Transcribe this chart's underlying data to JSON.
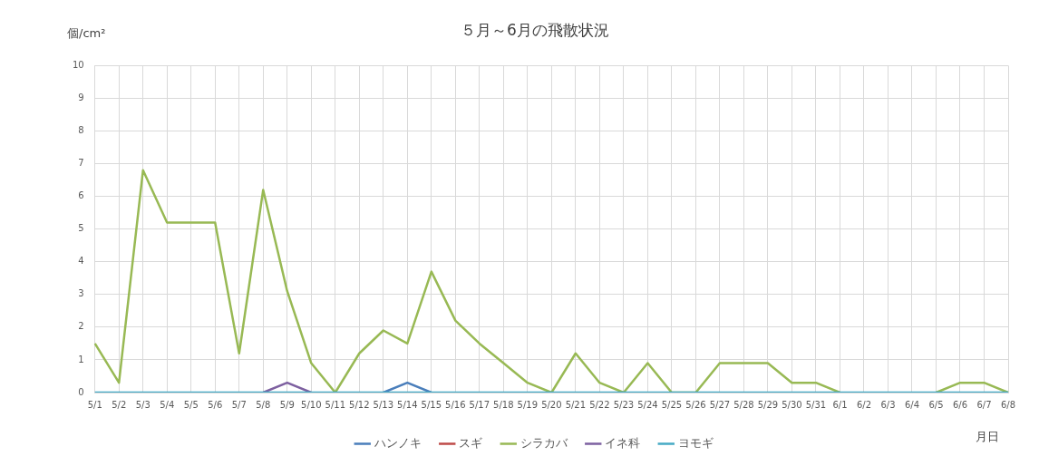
{
  "chart_data": {
    "type": "line",
    "title": "５月～6月の飛散状況",
    "ylabel": "個/cm²",
    "xlabel": "月日",
    "categories": [
      "5/1",
      "5/2",
      "5/3",
      "5/4",
      "5/5",
      "5/6",
      "5/7",
      "5/8",
      "5/9",
      "5/10",
      "5/11",
      "5/12",
      "5/13",
      "5/14",
      "5/15",
      "5/16",
      "5/17",
      "5/18",
      "5/19",
      "5/20",
      "5/21",
      "5/22",
      "5/23",
      "5/24",
      "5/25",
      "5/26",
      "5/27",
      "5/28",
      "5/29",
      "5/30",
      "5/31",
      "6/1",
      "6/2",
      "6/3",
      "6/4",
      "6/5",
      "6/6",
      "6/7",
      "6/8"
    ],
    "series": [
      {
        "name": "ハンノキ",
        "color": "#4a7ebb",
        "values": [
          null,
          null,
          null,
          null,
          null,
          null,
          null,
          null,
          null,
          null,
          null,
          null,
          0,
          0.3,
          0,
          null,
          null,
          null,
          null,
          null,
          null,
          null,
          null,
          null,
          null,
          null,
          null,
          null,
          null,
          null,
          null,
          null,
          null,
          null,
          null,
          null,
          null,
          null,
          null
        ]
      },
      {
        "name": "スギ",
        "color": "#be4b48",
        "values": [
          null,
          null,
          null,
          null,
          null,
          null,
          null,
          null,
          null,
          null,
          null,
          null,
          null,
          null,
          null,
          null,
          null,
          null,
          null,
          null,
          null,
          null,
          null,
          null,
          null,
          null,
          null,
          null,
          null,
          null,
          null,
          null,
          null,
          null,
          null,
          null,
          null,
          null,
          null
        ]
      },
      {
        "name": "シラカバ",
        "color": "#98b954",
        "values": [
          1.5,
          0.3,
          6.8,
          5.2,
          5.2,
          5.2,
          1.2,
          6.2,
          3.1,
          0.9,
          0,
          1.2,
          1.9,
          1.5,
          3.7,
          2.2,
          1.5,
          0.9,
          0.3,
          0,
          1.2,
          0.3,
          0,
          0.9,
          0,
          0,
          0.9,
          0.9,
          0.9,
          0.3,
          0.3,
          0,
          null,
          null,
          null,
          0,
          0.3,
          0.3,
          0
        ]
      },
      {
        "name": "イネ科",
        "color": "#7d60a0",
        "values": [
          null,
          null,
          null,
          null,
          null,
          null,
          null,
          0,
          0.3,
          0,
          null,
          null,
          null,
          null,
          null,
          null,
          null,
          null,
          null,
          null,
          null,
          null,
          null,
          null,
          null,
          null,
          null,
          null,
          null,
          null,
          null,
          null,
          null,
          null,
          null,
          null,
          null,
          null,
          null
        ]
      },
      {
        "name": "ヨモギ",
        "color": "#46aac5",
        "values": [
          0,
          0,
          0,
          0,
          0,
          0,
          0,
          0,
          0,
          0,
          0,
          0,
          0,
          0,
          0,
          0,
          0,
          0,
          0,
          0,
          0,
          0,
          0,
          0,
          0,
          0,
          0,
          0,
          0,
          0,
          0,
          0,
          0,
          0,
          0,
          0,
          0,
          0,
          0
        ]
      }
    ],
    "ylim": [
      0,
      10
    ],
    "yticks": [
      0,
      1,
      2,
      3,
      4,
      5,
      6,
      7,
      8,
      9,
      10
    ],
    "grid": true,
    "legend": "bottom",
    "marker": "none",
    "line_style": "solid"
  }
}
